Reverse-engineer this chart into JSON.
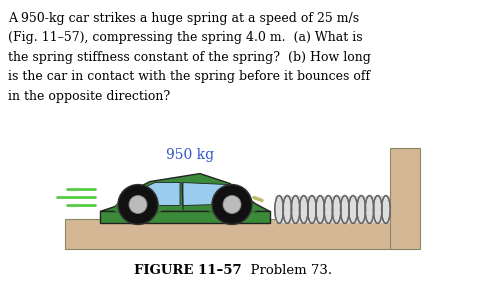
{
  "bg_color": "#ffffff",
  "text_color": "#000000",
  "paragraph_lines": [
    "A 950-kg car strikes a huge spring at a speed of 25 m/s",
    "(Fig. 11–57), compressing the spring 4.0 m.  (a) What is",
    "the spring stiffness constant of the spring?  (b) How long",
    "is the car in contact with the spring before it bounces off",
    "in the opposite direction?"
  ],
  "figure_label_bold": "FIGURE 11–57",
  "figure_label_normal": "  Problem 73.",
  "weight_label": "950 kg",
  "weight_label_color": "#3355cc",
  "floor_color": "#d4b896",
  "wall_color": "#d4b896",
  "floor_edge_color": "#888866",
  "spring_color": "#aaaaaa",
  "spring_edge_color": "#666666",
  "car_body_color": "#3a8a3a",
  "car_dark": "#111111",
  "car_outline": "#222222",
  "car_window_color": "#99ccee",
  "speed_line_color": "#55cc44",
  "caption_fontsize": 9.5,
  "text_fontsize": 9.0
}
